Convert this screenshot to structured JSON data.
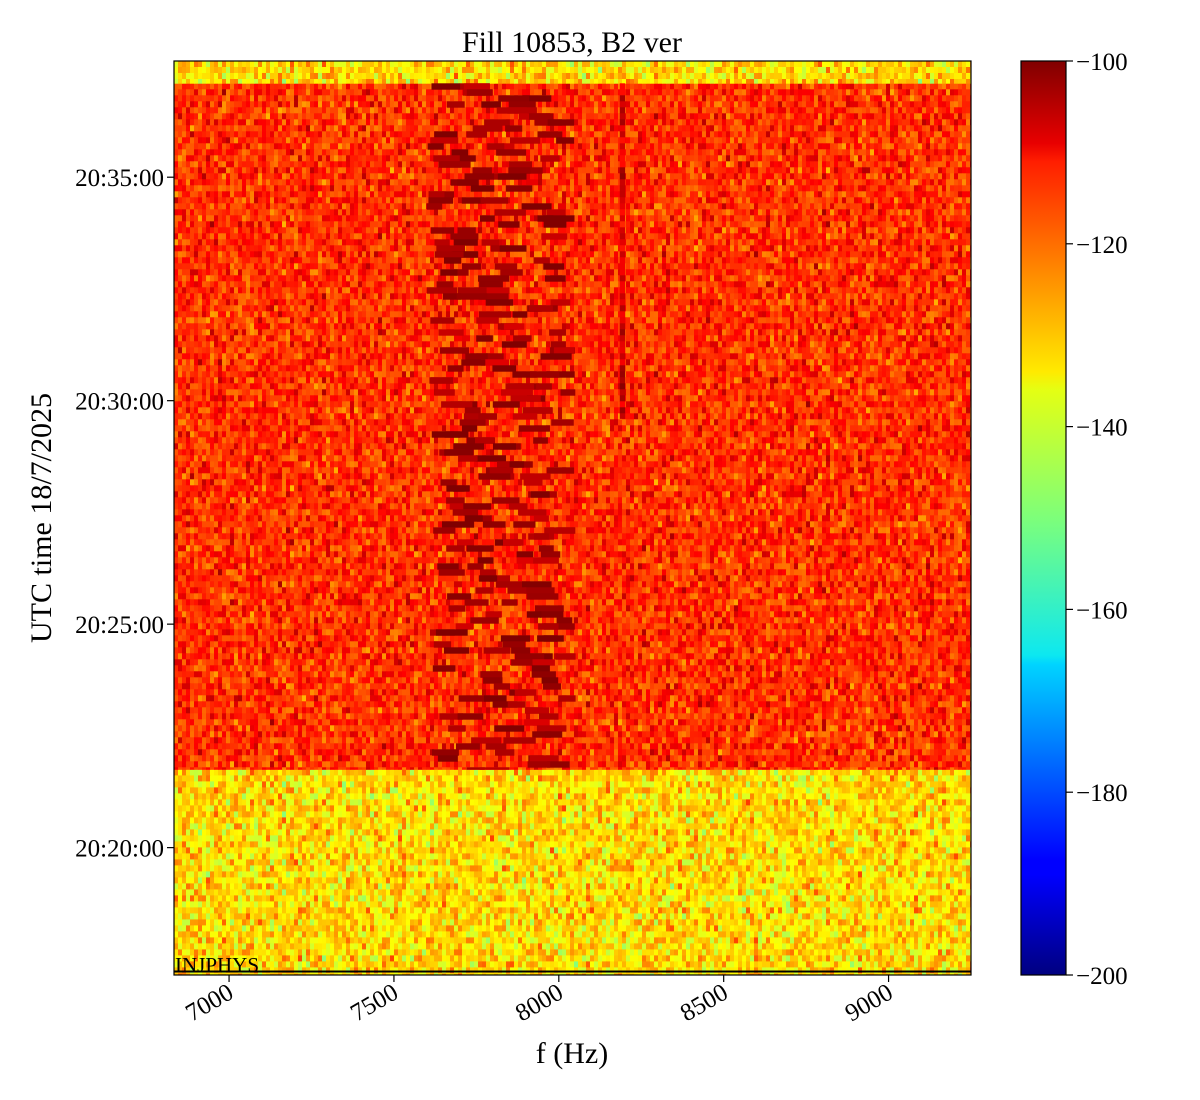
{
  "chart_data": {
    "type": "heatmap",
    "title": "Fill 10853, B2 ver",
    "xlabel": "f (Hz)",
    "ylabel": "UTC time 18/7/2025",
    "xlim": [
      6833,
      9250
    ],
    "x_ticks": [
      7000,
      7500,
      8000,
      8500,
      9000
    ],
    "y_ticks": [
      "20:35:00",
      "20:30:00",
      "20:25:00",
      "20:20:00"
    ],
    "y_tick_values_min": [
      35,
      30,
      25,
      20
    ],
    "ylim_min": [
      17.15,
      37.6
    ],
    "colorbar": {
      "range": [
        -200,
        -100
      ],
      "ticks": [
        -100,
        -120,
        -140,
        -160,
        -180,
        -200
      ],
      "tick_labels": [
        "−100",
        "−120",
        "−140",
        "−160",
        "−180",
        "−200"
      ],
      "colormap": "jet"
    },
    "annotation": "INJPHYS",
    "segments": [
      {
        "name": "",
        "time_range_min": [
          17.15,
          21.75
        ],
        "mean_level": -134,
        "spread": 7
      },
      {
        "name": "",
        "time_range_min": [
          21.75,
          37.1
        ],
        "mean_level": -117,
        "spread": 6
      },
      {
        "name": "",
        "time_range_min": [
          37.1,
          37.6
        ],
        "mean_level": -134,
        "spread": 7
      }
    ],
    "features": [
      {
        "name": "",
        "x_range": [
          7600,
          8050
        ],
        "time_range_min": [
          21.75,
          37.1
        ],
        "level": -103
      },
      {
        "name": "",
        "x_range": [
          8185,
          8200
        ],
        "time_range_min": [
          29.6,
          37.1
        ],
        "level": -108
      }
    ],
    "grid": false,
    "legend": "colorbar-right"
  }
}
